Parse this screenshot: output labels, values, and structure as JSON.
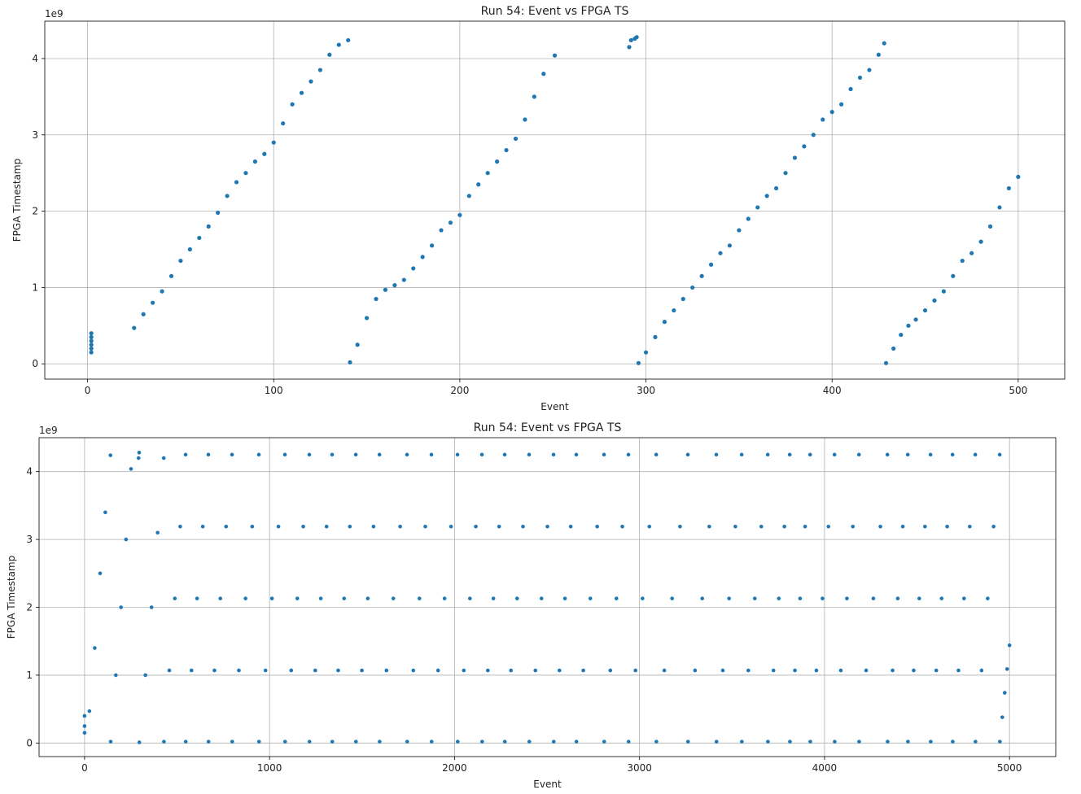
{
  "chart_data": [
    {
      "type": "scatter",
      "title": "Run 54: Event vs FPGA TS",
      "x_label": "Event",
      "y_label": "FPGA Timestamp",
      "y_offset_label": "1e9",
      "color": "#1f77b4",
      "grid": true,
      "xlim": [
        -23,
        525
      ],
      "ylim": [
        -0.2,
        4.49
      ],
      "xticks": [
        0,
        100,
        200,
        300,
        400,
        500
      ],
      "yticks": [
        0,
        1,
        2,
        3,
        4
      ],
      "x": [
        2,
        2,
        2,
        2,
        2,
        2,
        25,
        30,
        35,
        40,
        45,
        50,
        55,
        60,
        65,
        70,
        75,
        80,
        85,
        90,
        95,
        100,
        105,
        110,
        115,
        120,
        125,
        130,
        135,
        140,
        141,
        145,
        150,
        155,
        160,
        165,
        170,
        175,
        180,
        185,
        190,
        195,
        200,
        205,
        210,
        215,
        220,
        225,
        230,
        235,
        240,
        245,
        251,
        291,
        292,
        294,
        295,
        296,
        300,
        305,
        310,
        315,
        320,
        325,
        330,
        335,
        340,
        345,
        350,
        355,
        360,
        365,
        370,
        375,
        380,
        385,
        390,
        395,
        400,
        405,
        410,
        415,
        420,
        425,
        428,
        429,
        433,
        437,
        441,
        445,
        450,
        455,
        460,
        465,
        470,
        475,
        480,
        485,
        490,
        495,
        500
      ],
      "y": [
        0.15,
        0.2,
        0.25,
        0.3,
        0.35,
        0.4,
        0.47,
        0.65,
        0.8,
        0.95,
        1.15,
        1.35,
        1.5,
        1.65,
        1.8,
        1.98,
        2.2,
        2.38,
        2.5,
        2.65,
        2.75,
        2.9,
        3.15,
        3.4,
        3.55,
        3.7,
        3.85,
        4.05,
        4.18,
        4.24,
        0.02,
        0.25,
        0.6,
        0.85,
        0.97,
        1.03,
        1.1,
        1.25,
        1.4,
        1.55,
        1.75,
        1.85,
        1.95,
        2.2,
        2.35,
        2.5,
        2.65,
        2.8,
        2.95,
        3.2,
        3.5,
        3.8,
        4.04,
        4.15,
        4.24,
        4.26,
        4.28,
        0.01,
        0.15,
        0.35,
        0.55,
        0.7,
        0.85,
        1.0,
        1.15,
        1.3,
        1.45,
        1.55,
        1.75,
        1.9,
        2.05,
        2.2,
        2.3,
        2.5,
        2.7,
        2.85,
        3.0,
        3.2,
        3.3,
        3.4,
        3.6,
        3.75,
        3.85,
        4.05,
        4.2,
        0.01,
        0.2,
        0.38,
        0.5,
        0.58,
        0.7,
        0.83,
        0.95,
        1.15,
        1.35,
        1.45,
        1.6,
        1.8,
        2.05,
        2.3,
        2.45
      ]
    },
    {
      "type": "scatter",
      "title": "Run 54: Event vs FPGA TS",
      "x_label": "Event",
      "y_label": "FPGA Timestamp",
      "y_offset_label": "1e9",
      "color": "#1f77b4",
      "grid": true,
      "xlim": [
        -246,
        5250
      ],
      "ylim": [
        -0.2,
        4.5
      ],
      "xticks": [
        0,
        1000,
        2000,
        3000,
        4000,
        5000
      ],
      "yticks": [
        0,
        1,
        2,
        3,
        4
      ],
      "x": [
        0,
        0,
        0,
        26,
        55,
        84,
        112,
        140,
        141,
        169,
        197,
        224,
        251,
        292,
        295,
        296,
        329,
        362,
        395,
        428,
        429,
        458,
        488,
        517,
        546,
        547,
        578,
        608,
        639,
        669,
        670,
        702,
        734,
        765,
        797,
        798,
        834,
        870,
        906,
        942,
        943,
        978,
        1013,
        1048,
        1083,
        1084,
        1117,
        1150,
        1182,
        1215,
        1216,
        1247,
        1277,
        1308,
        1338,
        1339,
        1371,
        1403,
        1434,
        1466,
        1467,
        1499,
        1531,
        1562,
        1594,
        1595,
        1632,
        1669,
        1706,
        1743,
        1744,
        1777,
        1810,
        1842,
        1875,
        1876,
        1911,
        1946,
        1981,
        2016,
        2017,
        2050,
        2083,
        2115,
        2148,
        2149,
        2180,
        2210,
        2241,
        2271,
        2272,
        2305,
        2338,
        2370,
        2403,
        2404,
        2437,
        2470,
        2502,
        2535,
        2536,
        2567,
        2597,
        2628,
        2658,
        2659,
        2696,
        2734,
        2771,
        2808,
        2809,
        2842,
        2875,
        2907,
        2940,
        2941,
        2978,
        3016,
        3053,
        3090,
        3091,
        3134,
        3176,
        3219,
        3261,
        3262,
        3300,
        3339,
        3377,
        3415,
        3416,
        3450,
        3484,
        3518,
        3552,
        3553,
        3588,
        3623,
        3658,
        3693,
        3694,
        3724,
        3753,
        3783,
        3812,
        3813,
        3840,
        3868,
        3895,
        3922,
        3923,
        3956,
        3989,
        4021,
        4054,
        4055,
        4088,
        4121,
        4153,
        4186,
        4187,
        4225,
        4264,
        4302,
        4340,
        4341,
        4368,
        4396,
        4423,
        4450,
        4451,
        4482,
        4512,
        4543,
        4573,
        4574,
        4604,
        4633,
        4663,
        4692,
        4693,
        4724,
        4754,
        4785,
        4815,
        4816,
        4849,
        4882,
        4914,
        4947,
        4948,
        4961,
        4974,
        4987,
        5000
      ],
      "y": [
        0.15,
        0.25,
        0.4,
        0.47,
        1.4,
        2.5,
        3.4,
        4.24,
        0.02,
        1.0,
        2.0,
        3.0,
        4.04,
        4.2,
        4.28,
        0.01,
        1.0,
        2.0,
        3.1,
        4.2,
        0.02,
        1.07,
        2.13,
        3.19,
        4.25,
        0.02,
        1.07,
        2.13,
        3.19,
        4.25,
        0.02,
        1.07,
        2.13,
        3.19,
        4.25,
        0.02,
        1.07,
        2.13,
        3.19,
        4.25,
        0.02,
        1.07,
        2.13,
        3.19,
        4.25,
        0.02,
        1.07,
        2.13,
        3.19,
        4.25,
        0.02,
        1.07,
        2.13,
        3.19,
        4.25,
        0.02,
        1.07,
        2.13,
        3.19,
        4.25,
        0.02,
        1.07,
        2.13,
        3.19,
        4.25,
        0.02,
        1.07,
        2.13,
        3.19,
        4.25,
        0.02,
        1.07,
        2.13,
        3.19,
        4.25,
        0.02,
        1.07,
        2.13,
        3.19,
        4.25,
        0.02,
        1.07,
        2.13,
        3.19,
        4.25,
        0.02,
        1.07,
        2.13,
        3.19,
        4.25,
        0.02,
        1.07,
        2.13,
        3.19,
        4.25,
        0.02,
        1.07,
        2.13,
        3.19,
        4.25,
        0.02,
        1.07,
        2.13,
        3.19,
        4.25,
        0.02,
        1.07,
        2.13,
        3.19,
        4.25,
        0.02,
        1.07,
        2.13,
        3.19,
        4.25,
        0.02,
        1.07,
        2.13,
        3.19,
        4.25,
        0.02,
        1.07,
        2.13,
        3.19,
        4.25,
        0.02,
        1.07,
        2.13,
        3.19,
        4.25,
        0.02,
        1.07,
        2.13,
        3.19,
        4.25,
        0.02,
        1.07,
        2.13,
        3.19,
        4.25,
        0.02,
        1.07,
        2.13,
        3.19,
        4.25,
        0.02,
        1.07,
        2.13,
        3.19,
        4.25,
        0.02,
        1.07,
        2.13,
        3.19,
        4.25,
        0.02,
        1.07,
        2.13,
        3.19,
        4.25,
        0.02,
        1.07,
        2.13,
        3.19,
        4.25,
        0.02,
        1.07,
        2.13,
        3.19,
        4.25,
        0.02,
        1.07,
        2.13,
        3.19,
        4.25,
        0.02,
        1.07,
        2.13,
        3.19,
        4.25,
        0.02,
        1.07,
        2.13,
        3.19,
        4.25,
        0.02,
        1.07,
        2.13,
        3.19,
        4.25,
        0.02,
        0.38,
        0.74,
        1.09,
        1.44
      ]
    }
  ]
}
